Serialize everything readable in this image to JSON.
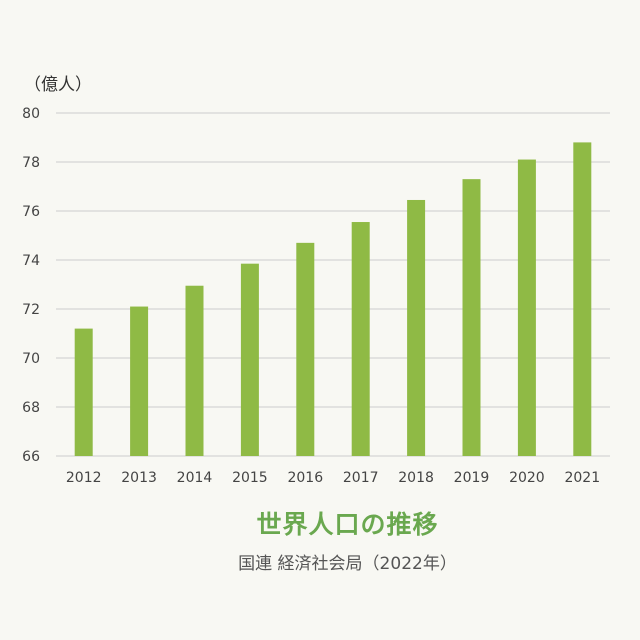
{
  "chart_data": {
    "type": "bar",
    "title": "世界人口の推移",
    "source": "国連 経済社会局（2022年）",
    "unit_label": "（億人）",
    "categories": [
      "2012",
      "2013",
      "2014",
      "2015",
      "2016",
      "2017",
      "2018",
      "2019",
      "2020",
      "2021"
    ],
    "values": [
      71.2,
      72.1,
      72.95,
      73.85,
      74.7,
      75.55,
      76.45,
      77.3,
      78.1,
      78.8
    ],
    "ylim": [
      66,
      80
    ],
    "yticks": [
      80,
      78,
      76,
      74,
      72,
      70,
      68,
      66
    ],
    "xlabel": "",
    "ylabel": "",
    "grid": true,
    "bar_color": "#8fba45",
    "title_color": "#6aa84f"
  }
}
